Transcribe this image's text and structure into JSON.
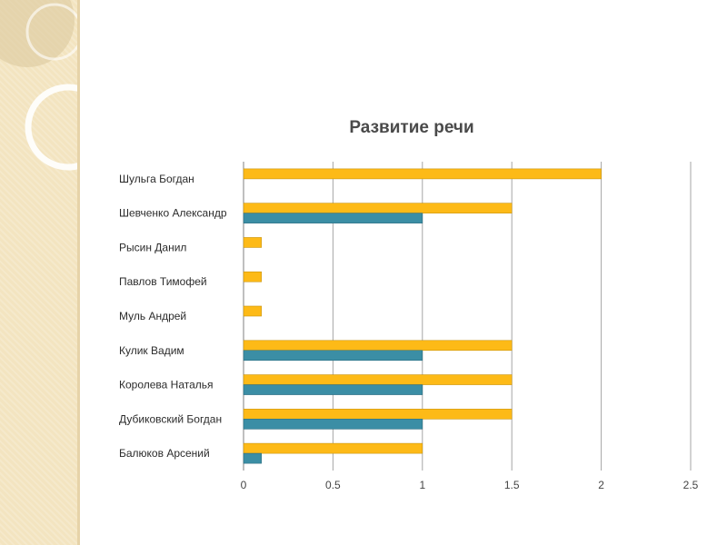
{
  "chart_data": {
    "type": "bar",
    "orientation": "horizontal",
    "title": "Развитие речи",
    "categories": [
      "Шульга Богдан",
      "Шевченко Александр",
      "Рысин Данил",
      "Павлов Тимофей",
      "Муль Андрей",
      "Кулик Вадим",
      "Королева Наталья",
      "Дубиковский Богдан",
      "Балюков Арсений"
    ],
    "series": [
      {
        "values": [
          2,
          1.5,
          0.1,
          0.1,
          0.1,
          1.5,
          1.5,
          1.5,
          1
        ]
      },
      {
        "values": [
          0,
          1,
          0,
          0,
          0,
          1,
          1,
          1,
          0.1
        ]
      }
    ],
    "series_colors": [
      "#fdba17",
      "#3b8ea5"
    ],
    "xlim": [
      0,
      2.5
    ],
    "xticks": [
      "0",
      "0.5",
      "1",
      "1.5",
      "2",
      "2.5"
    ],
    "grid": true,
    "legend": "none"
  }
}
